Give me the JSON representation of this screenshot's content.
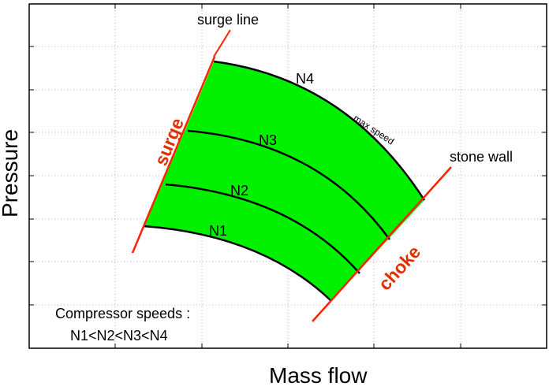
{
  "axes": {
    "xlabel": "Mass flow",
    "ylabel": "Pressure"
  },
  "labels": {
    "surge_line": "surge line",
    "stone_wall": "stone wall",
    "surge": "surge",
    "choke": "choke",
    "max_speed": "max speed",
    "n1": "N1",
    "n2": "N2",
    "n3": "N3",
    "n4": "N4"
  },
  "legend": {
    "line1": "Compressor speeds :",
    "line2": "N1<N2<N3<N4"
  },
  "colors": {
    "fill": "#00f000",
    "limit_line": "#ff2200",
    "surge_text": "#e03000",
    "speed_line": "#000000",
    "grid": "#b0b0b0"
  }
}
